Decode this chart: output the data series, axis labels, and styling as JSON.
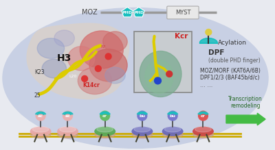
{
  "bg_outer": "#e8eaf0",
  "bg_ellipse": "#c8d0e4",
  "moz_label": "MOZ",
  "phd_color": "#1abfbf",
  "phd_labels": [
    "PHD",
    "PHD"
  ],
  "myst_label": "MYST",
  "myst_color": "#e8e8e8",
  "h3_label": "H3",
  "k14cr_label": "K14cr",
  "k23_label": "K23",
  "n25_label": "25",
  "kcr_label": "Kcr",
  "acylation_label": "Acylation",
  "dpf_label": "DPF",
  "dpf_sublabel": "(double PHD finger)",
  "moz_morf_label": "MOZ/MORF (KAT6A/6B)",
  "dpf123_label": "DPF1/2/3 (BAF45b/d/c)",
  "dots_label": "... ...",
  "transcription_label": "Transcription\nremodeling",
  "arrow_color": "#44bb44",
  "cyan_color": "#1abfbf",
  "nuc_positions": [
    60,
    100,
    155,
    210,
    255,
    300
  ],
  "nuc_colors": [
    "#e8a8a8",
    "#e8a8a8",
    "#55aa55",
    "#6868bb",
    "#6868bb",
    "#cc4444"
  ],
  "nuc_labels": [
    "ac",
    "ac",
    "cr",
    "bu",
    "bu",
    "cr"
  ],
  "fig_width": 4.0,
  "fig_height": 2.19,
  "dpi": 100
}
